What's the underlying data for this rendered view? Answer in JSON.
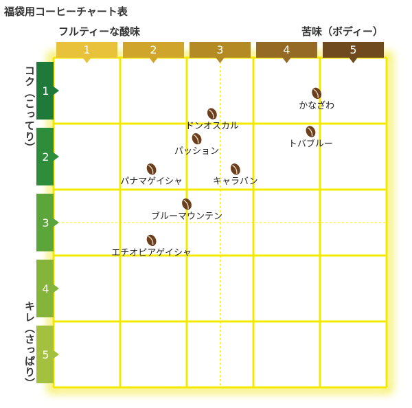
{
  "title": "福袋用コーヒーチャート表",
  "chart_data": {
    "type": "scatter",
    "x_axis": {
      "left_label": "フルティーな酸味",
      "right_label": "苦味（ボディー）",
      "ticks": [
        "1",
        "2",
        "3",
        "4",
        "5"
      ],
      "range": [
        0.5,
        5.5
      ],
      "tab_colors": [
        "#E8C23A",
        "#CFA52C",
        "#B38A23",
        "#946A24",
        "#6F4A1F"
      ]
    },
    "y_axis": {
      "top_label": "コク（こってり）",
      "bottom_label": "キレ（さっぱり）",
      "ticks": [
        "1",
        "2",
        "3",
        "4",
        "5"
      ],
      "range": [
        0.5,
        5.5
      ],
      "tab_colors": [
        "#1E7A3A",
        "#2E8D3B",
        "#5CA53B",
        "#84B53A",
        "#A3C03F"
      ]
    },
    "grid": true,
    "grid_color": "#F5E800",
    "bean_color": "#6B3F1D",
    "points": [
      {
        "label": "かなざわ",
        "x": 4.45,
        "y": 1.04
      },
      {
        "label": "ドンオスカル",
        "x": 2.88,
        "y": 1.35
      },
      {
        "label": "トバブルー",
        "x": 4.36,
        "y": 1.62
      },
      {
        "label": "パッション",
        "x": 2.65,
        "y": 1.73
      },
      {
        "label": "パナマゲイシャ",
        "x": 1.97,
        "y": 2.19
      },
      {
        "label": "キャラバン",
        "x": 3.23,
        "y": 2.19
      },
      {
        "label": "ブルーマウンテン",
        "x": 2.5,
        "y": 2.72
      },
      {
        "label": "エチオピアゲイシャ",
        "x": 1.97,
        "y": 3.27
      }
    ]
  }
}
